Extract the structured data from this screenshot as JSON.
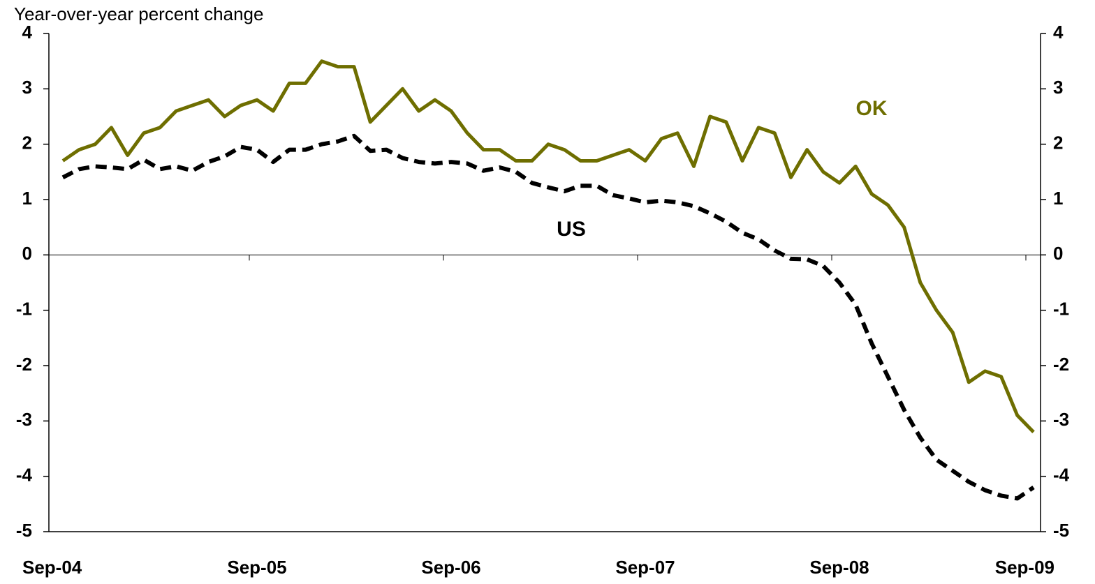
{
  "chart_data": {
    "type": "line",
    "y_axis_label": "Year-over-year percent change",
    "categories": [
      "Sep-04",
      null,
      null,
      null,
      null,
      null,
      null,
      null,
      null,
      null,
      null,
      null,
      "Sep-05",
      null,
      null,
      null,
      null,
      null,
      null,
      null,
      null,
      null,
      null,
      null,
      "Sep-06",
      null,
      null,
      null,
      null,
      null,
      null,
      null,
      null,
      null,
      null,
      null,
      "Sep-07",
      null,
      null,
      null,
      null,
      null,
      null,
      null,
      null,
      null,
      null,
      null,
      "Sep-08",
      null,
      null,
      null,
      null,
      null,
      null,
      null,
      null,
      null,
      null,
      null,
      "Sep-09"
    ],
    "series": [
      {
        "name": "OK",
        "color": "#6e6e00",
        "dashed": false,
        "values": [
          1.7,
          1.9,
          2.0,
          2.3,
          1.8,
          2.2,
          2.3,
          2.6,
          2.7,
          2.8,
          2.5,
          2.7,
          2.8,
          2.6,
          3.1,
          3.1,
          3.5,
          3.4,
          3.4,
          2.4,
          2.7,
          3.0,
          2.6,
          2.8,
          2.6,
          2.2,
          1.9,
          1.9,
          1.7,
          1.7,
          2.0,
          1.9,
          1.7,
          1.7,
          1.8,
          1.9,
          1.7,
          2.1,
          2.2,
          1.6,
          2.5,
          2.4,
          1.7,
          2.3,
          2.2,
          1.4,
          1.9,
          1.5,
          1.3,
          1.6,
          1.1,
          0.9,
          0.5,
          -0.5,
          -1.0,
          -1.4,
          -2.3,
          -2.1,
          -2.2,
          -2.9,
          -3.2
        ]
      },
      {
        "name": "US",
        "color": "#000000",
        "dashed": true,
        "values": [
          1.4,
          1.55,
          1.6,
          1.58,
          1.55,
          1.72,
          1.55,
          1.6,
          1.52,
          1.68,
          1.78,
          1.95,
          1.9,
          1.68,
          1.9,
          1.9,
          2.0,
          2.05,
          2.15,
          1.88,
          1.9,
          1.75,
          1.68,
          1.65,
          1.68,
          1.65,
          1.52,
          1.58,
          1.5,
          1.3,
          1.22,
          1.15,
          1.25,
          1.25,
          1.08,
          1.02,
          0.95,
          0.98,
          0.95,
          0.88,
          0.75,
          0.6,
          0.4,
          0.28,
          0.08,
          -0.07,
          -0.08,
          -0.2,
          -0.5,
          -0.9,
          -1.6,
          -2.2,
          -2.8,
          -3.3,
          -3.7,
          -3.9,
          -4.1,
          -4.25,
          -4.35,
          -4.4,
          -4.2
        ]
      }
    ],
    "ylim": [
      -5,
      4
    ],
    "yticks": [
      -5,
      -4,
      -3,
      -2,
      -1,
      0,
      1,
      2,
      3,
      4
    ],
    "y2lim": [
      -5,
      4
    ],
    "y2ticks": [
      -5,
      -4,
      -3,
      -2,
      -1,
      0,
      1,
      2,
      3,
      4
    ],
    "grid": false
  }
}
